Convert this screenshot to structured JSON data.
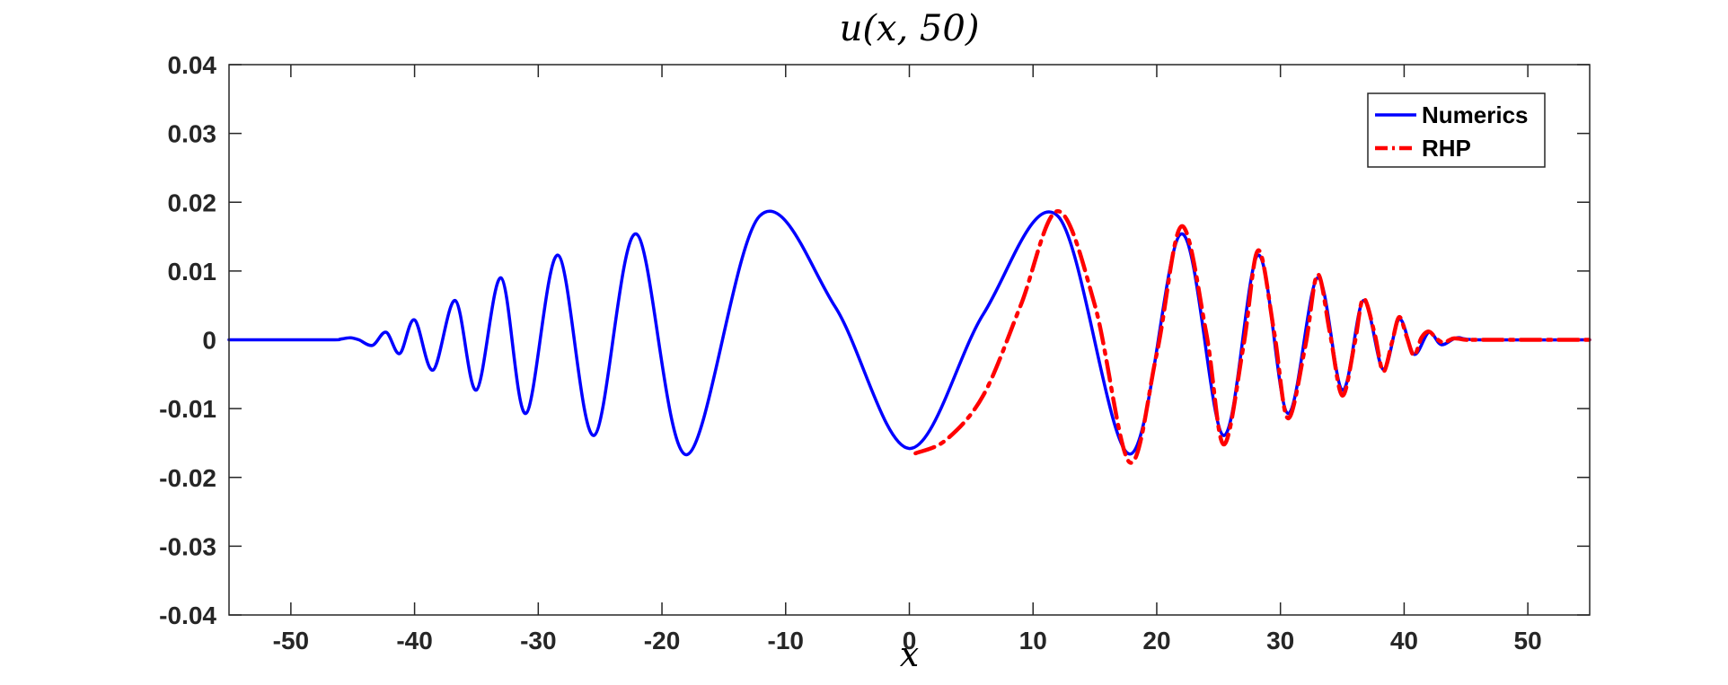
{
  "chart_data": {
    "type": "line",
    "title": "u(x, 50)",
    "xlabel": "x",
    "ylabel": "",
    "xlim": [
      -55,
      55
    ],
    "ylim": [
      -0.04,
      0.04
    ],
    "xticks": [
      -50,
      -40,
      -30,
      -20,
      -10,
      0,
      10,
      20,
      30,
      40,
      50
    ],
    "xtick_labels": [
      "-50",
      "-40",
      "-30",
      "-20",
      "-10",
      "0",
      "10",
      "20",
      "30",
      "40",
      "50"
    ],
    "yticks": [
      0.04,
      0.03,
      0.02,
      0.01,
      0,
      -0.01,
      -0.02,
      -0.03,
      -0.04
    ],
    "ytick_labels": [
      "0.04",
      "0.03",
      "0.02",
      "0.01",
      "0",
      "-0.01",
      "-0.02",
      "-0.03",
      "-0.04"
    ],
    "grid": false,
    "legend_position": "top-right",
    "series": [
      {
        "name": "Numerics",
        "color": "#0000ff",
        "style": "solid",
        "x": [
          -55,
          -47,
          -46,
          -45.2,
          -44.5,
          -43.4,
          -42.3,
          -41.2,
          -40,
          -38.5,
          -36.7,
          -35,
          -33,
          -31,
          -28.4,
          -25.5,
          -22.1,
          -18,
          -12.1,
          -6,
          0,
          6,
          12,
          17.8,
          22,
          25.4,
          28.2,
          30.6,
          33,
          35,
          36.7,
          38.3,
          39.6,
          40.8,
          42,
          43,
          44.3,
          46,
          55
        ],
        "y": [
          0,
          0,
          0.0001,
          0.0003,
          0,
          -0.0008,
          0.0011,
          -0.002,
          0.0029,
          -0.0044,
          0.0057,
          -0.0073,
          0.009,
          -0.0107,
          0.0123,
          -0.0139,
          0.0154,
          -0.0167,
          0.018,
          0.0048,
          -0.0158,
          0.0038,
          0.018,
          -0.0166,
          0.0154,
          -0.0139,
          0.0123,
          -0.0107,
          0.009,
          -0.0073,
          0.0057,
          -0.0043,
          0.003,
          -0.0021,
          0.0011,
          -0.0007,
          0.0003,
          0,
          0
        ]
      },
      {
        "name": "RHP",
        "color": "#ff0000",
        "style": "dashdot",
        "x": [
          0.5,
          3,
          6,
          9,
          12,
          15,
          17.8,
          20,
          22,
          24,
          25.4,
          27,
          28.2,
          29.5,
          30.6,
          32,
          33,
          34,
          35,
          36,
          36.7,
          37.6,
          38.3,
          39,
          39.6,
          40.2,
          40.8,
          41.4,
          42,
          42.6,
          43.2,
          44,
          45,
          46,
          55
        ],
        "y": [
          -0.0165,
          -0.0145,
          -0.008,
          0.005,
          0.0187,
          0.005,
          -0.0178,
          -0.002,
          0.0165,
          0.001,
          -0.0152,
          -0.001,
          0.013,
          0.001,
          -0.0114,
          -0.001,
          0.0095,
          0.001,
          -0.0081,
          -0.0005,
          0.006,
          0.001,
          -0.0046,
          -0.0005,
          0.0033,
          0.0005,
          -0.0023,
          0.0003,
          0.0012,
          0.0002,
          -0.0004,
          0.0002,
          0,
          0,
          0
        ]
      }
    ]
  }
}
